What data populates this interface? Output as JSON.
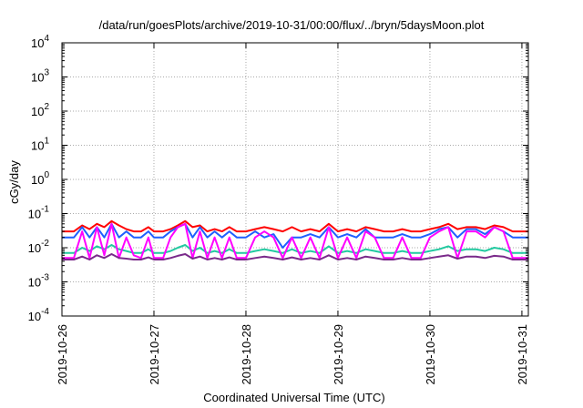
{
  "page": {
    "title": "/data/run/goesPlots/archive/2019-10-31/00:00/flux/../bryn/5daysMoon.plot"
  },
  "chart_data": {
    "type": "line",
    "title": "/data/run/goesPlots/archive/2019-10-31/00:00/flux/../bryn/5daysMoon.plot",
    "xlabel": "Coordinated Universal Time (UTC)",
    "ylabel": "cGy/day",
    "xlim": [
      0,
      5.07
    ],
    "x_tick_values": [
      0,
      1,
      2,
      3,
      4,
      5
    ],
    "x_tick_labels": [
      "2019-10-26",
      "2019-10-27",
      "2019-10-28",
      "2019-10-29",
      "2019-10-30",
      "2019-10-31"
    ],
    "yscale": "log",
    "ylim": [
      0.0001,
      10000
    ],
    "y_ticks": [
      {
        "value": 0.0001,
        "base": "10",
        "exp": "-4"
      },
      {
        "value": 0.001,
        "base": "10",
        "exp": "-3"
      },
      {
        "value": 0.01,
        "base": "10",
        "exp": "-2"
      },
      {
        "value": 0.1,
        "base": "10",
        "exp": "-1"
      },
      {
        "value": 1,
        "base": "10",
        "exp": "0"
      },
      {
        "value": 10,
        "base": "10",
        "exp": "1"
      },
      {
        "value": 100,
        "base": "10",
        "exp": "2"
      },
      {
        "value": 1000,
        "base": "10",
        "exp": "3"
      },
      {
        "value": 10000,
        "base": "10",
        "exp": "4"
      }
    ],
    "grid": true,
    "legend": "none",
    "x": [
      0.0,
      0.13,
      0.22,
      0.3,
      0.38,
      0.46,
      0.54,
      0.62,
      0.7,
      0.78,
      0.86,
      0.94,
      1.0,
      1.1,
      1.18,
      1.26,
      1.34,
      1.42,
      1.5,
      1.58,
      1.66,
      1.74,
      1.82,
      1.9,
      2.0,
      2.1,
      2.2,
      2.3,
      2.4,
      2.5,
      2.6,
      2.7,
      2.8,
      2.9,
      3.0,
      3.1,
      3.2,
      3.3,
      3.4,
      3.5,
      3.6,
      3.7,
      3.8,
      3.9,
      4.0,
      4.1,
      4.2,
      4.3,
      4.4,
      4.5,
      4.6,
      4.7,
      4.8,
      4.9,
      5.0,
      5.07
    ],
    "series": [
      {
        "color": "#ff0000",
        "values": [
          0.03,
          0.03,
          0.045,
          0.035,
          0.05,
          0.04,
          0.06,
          0.045,
          0.035,
          0.03,
          0.03,
          0.04,
          0.03,
          0.03,
          0.035,
          0.045,
          0.06,
          0.04,
          0.045,
          0.03,
          0.035,
          0.03,
          0.04,
          0.03,
          0.03,
          0.035,
          0.04,
          0.035,
          0.03,
          0.04,
          0.03,
          0.035,
          0.03,
          0.05,
          0.03,
          0.035,
          0.03,
          0.04,
          0.035,
          0.03,
          0.03,
          0.035,
          0.03,
          0.03,
          0.035,
          0.04,
          0.05,
          0.035,
          0.04,
          0.04,
          0.035,
          0.045,
          0.04,
          0.03,
          0.03,
          0.03
        ]
      },
      {
        "color": "#1f5fff",
        "values": [
          0.02,
          0.02,
          0.04,
          0.02,
          0.04,
          0.02,
          0.05,
          0.02,
          0.03,
          0.02,
          0.02,
          0.03,
          0.02,
          0.02,
          0.03,
          0.04,
          0.05,
          0.02,
          0.04,
          0.02,
          0.03,
          0.02,
          0.03,
          0.02,
          0.02,
          0.03,
          0.02,
          0.025,
          0.01,
          0.02,
          0.02,
          0.025,
          0.02,
          0.04,
          0.02,
          0.025,
          0.02,
          0.035,
          0.02,
          0.02,
          0.02,
          0.025,
          0.02,
          0.02,
          0.025,
          0.035,
          0.04,
          0.02,
          0.035,
          0.035,
          0.025,
          0.04,
          0.03,
          0.02,
          0.02,
          0.02
        ]
      },
      {
        "color": "#22c9a0",
        "values": [
          0.007,
          0.007,
          0.01,
          0.008,
          0.011,
          0.009,
          0.012,
          0.009,
          0.008,
          0.007,
          0.007,
          0.009,
          0.007,
          0.007,
          0.008,
          0.01,
          0.012,
          0.008,
          0.01,
          0.007,
          0.008,
          0.007,
          0.009,
          0.007,
          0.007,
          0.008,
          0.009,
          0.008,
          0.007,
          0.009,
          0.007,
          0.008,
          0.007,
          0.011,
          0.007,
          0.008,
          0.007,
          0.009,
          0.008,
          0.007,
          0.007,
          0.008,
          0.007,
          0.007,
          0.008,
          0.009,
          0.011,
          0.008,
          0.009,
          0.009,
          0.008,
          0.01,
          0.009,
          0.007,
          0.007,
          0.007
        ]
      },
      {
        "color": "#ff00ff",
        "values": [
          0.005,
          0.005,
          0.03,
          0.005,
          0.04,
          0.006,
          0.05,
          0.005,
          0.02,
          0.006,
          0.005,
          0.02,
          0.005,
          0.005,
          0.02,
          0.04,
          0.05,
          0.005,
          0.03,
          0.005,
          0.02,
          0.005,
          0.02,
          0.005,
          0.005,
          0.02,
          0.03,
          0.02,
          0.005,
          0.02,
          0.005,
          0.02,
          0.005,
          0.04,
          0.005,
          0.02,
          0.005,
          0.03,
          0.02,
          0.005,
          0.005,
          0.02,
          0.005,
          0.005,
          0.02,
          0.03,
          0.04,
          0.005,
          0.03,
          0.03,
          0.02,
          0.04,
          0.03,
          0.005,
          0.005,
          0.005
        ]
      },
      {
        "color": "#7a2a8a",
        "values": [
          0.0045,
          0.0045,
          0.0055,
          0.0045,
          0.006,
          0.005,
          0.0065,
          0.005,
          0.0048,
          0.0045,
          0.0045,
          0.0052,
          0.0045,
          0.0045,
          0.005,
          0.0058,
          0.0065,
          0.0048,
          0.0055,
          0.0045,
          0.005,
          0.0045,
          0.0052,
          0.0045,
          0.0045,
          0.005,
          0.0055,
          0.005,
          0.0045,
          0.0052,
          0.0045,
          0.005,
          0.0045,
          0.006,
          0.0045,
          0.005,
          0.0045,
          0.0055,
          0.005,
          0.0045,
          0.0045,
          0.005,
          0.0045,
          0.0045,
          0.005,
          0.0055,
          0.006,
          0.0048,
          0.0055,
          0.0055,
          0.005,
          0.0058,
          0.0055,
          0.0045,
          0.0045,
          0.0045
        ]
      }
    ]
  }
}
